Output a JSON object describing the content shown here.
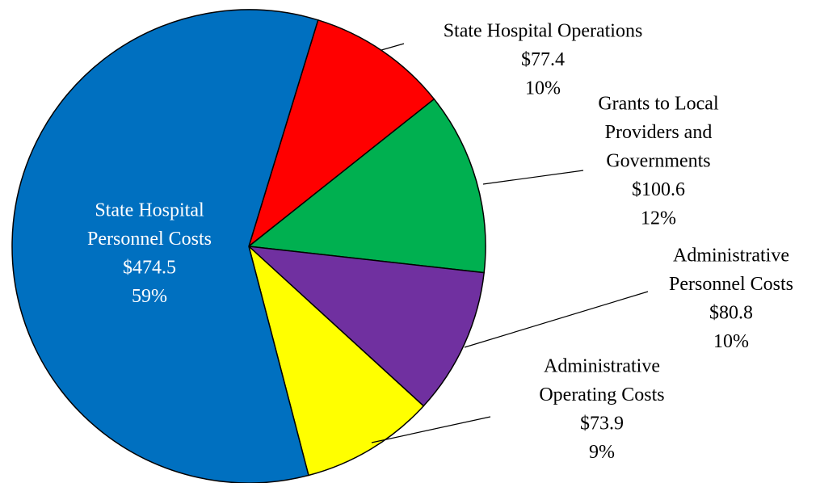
{
  "chart_data": {
    "type": "pie",
    "categories": [
      [
        "State Hospital Operations"
      ],
      [
        "Grants to Local",
        "Providers and",
        "Governments"
      ],
      [
        "Administrative",
        "Personnel Costs"
      ],
      [
        "Administrative",
        "Operating Costs"
      ],
      [
        "State Hospital",
        "Personnel Costs"
      ]
    ],
    "values": [
      77.4,
      100.6,
      80.8,
      73.9,
      474.5
    ],
    "value_labels": [
      "$77.4",
      "$100.6",
      "$80.8",
      "$73.9",
      "$474.5"
    ],
    "percent_labels": [
      "10%",
      "12%",
      "10%",
      "9%",
      "59%"
    ],
    "colors": [
      "#ff0000",
      "#00b050",
      "#7030a0",
      "#ffff00",
      "#0070c0"
    ]
  }
}
